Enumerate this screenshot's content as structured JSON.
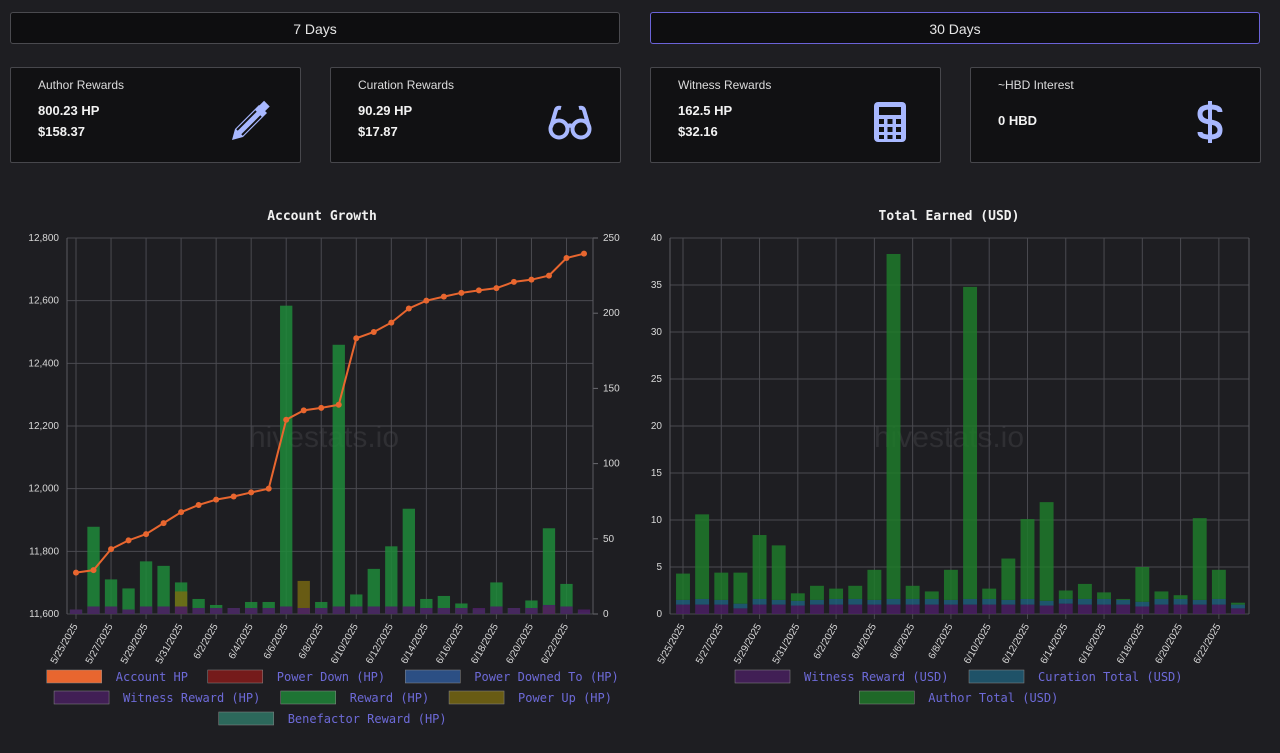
{
  "range_buttons": [
    {
      "label": "7 Days",
      "active": false
    },
    {
      "label": "30 Days",
      "active": true
    }
  ],
  "cards": [
    {
      "title": "Author Rewards",
      "value1": "800.23 HP",
      "value2": "$158.37",
      "icon": "pencil-icon"
    },
    {
      "title": "Curation Rewards",
      "value1": "90.29 HP",
      "value2": "$17.87",
      "icon": "glasses-icon"
    },
    {
      "title": "Witness Rewards",
      "value1": "162.5 HP",
      "value2": "$32.16",
      "icon": "calculator-icon"
    },
    {
      "title": "~HBD Interest",
      "value1": "0 HBD",
      "value2": "",
      "icon": "dollar-icon"
    }
  ],
  "colors": {
    "accent": "#6b63d8",
    "icon": "#a8b8ff",
    "account_hp": "#e8662f",
    "power_down": "#8b1a1a",
    "power_downed_to": "#2f5b9e",
    "witness": "#4a1f63",
    "reward": "#1e8a3a",
    "power_up": "#7a6a12",
    "benefactor": "#2f7a6a",
    "curation": "#1f5f7a",
    "author": "#1f7a2a"
  },
  "watermark": "hivestats.io",
  "chart_data": [
    {
      "type": "bar",
      "title": "Account Growth",
      "categories": [
        "5/25/2025",
        "5/26/2025",
        "5/27/2025",
        "5/28/2025",
        "5/29/2025",
        "5/30/2025",
        "5/31/2025",
        "6/1/2025",
        "6/2/2025",
        "6/3/2025",
        "6/4/2025",
        "6/5/2025",
        "6/6/2025",
        "6/7/2025",
        "6/8/2025",
        "6/9/2025",
        "6/10/2025",
        "6/11/2025",
        "6/12/2025",
        "6/13/2025",
        "6/14/2025",
        "6/15/2025",
        "6/16/2025",
        "6/17/2025",
        "6/18/2025",
        "6/19/2025",
        "6/20/2025",
        "6/21/2025",
        "6/22/2025",
        "6/23/2025"
      ],
      "tick_labels": [
        "5/25/2025",
        "5/27/2025",
        "5/29/2025",
        "5/31/2025",
        "6/2/2025",
        "6/4/2025",
        "6/6/2025",
        "6/8/2025",
        "6/10/2025",
        "6/12/2025",
        "6/14/2025",
        "6/16/2025",
        "6/18/2025",
        "6/20/2025",
        "6/22/2025"
      ],
      "y_left": {
        "min": 11600,
        "max": 12800,
        "ticks": [
          "11,600",
          "11,800",
          "12,000",
          "12,200",
          "12,400",
          "12,600",
          "12,800"
        ]
      },
      "y_right": {
        "min": 0,
        "max": 250,
        "ticks": [
          "0",
          "50",
          "100",
          "150",
          "200",
          "250"
        ]
      },
      "line_series": {
        "name": "Account HP",
        "axis": "left",
        "values": [
          11732,
          11740,
          11807,
          11835,
          11855,
          11890,
          11925,
          11948,
          11965,
          11975,
          11988,
          12000,
          12220,
          12250,
          12258,
          12268,
          12480,
          12500,
          12530,
          12575,
          12600,
          12613,
          12625,
          12633,
          12640,
          12660,
          12667,
          12680,
          12736,
          12750
        ]
      },
      "bar_series": [
        {
          "name": "Reward (HP)",
          "axis": "right",
          "values": [
            3,
            58,
            23,
            17,
            35,
            32,
            21,
            10,
            6,
            4,
            8,
            8,
            205,
            4,
            8,
            179,
            13,
            30,
            45,
            70,
            10,
            12,
            7,
            3,
            21,
            4,
            9,
            57,
            20,
            1
          ]
        },
        {
          "name": "Witness Reward (HP)",
          "axis": "right",
          "values": [
            3,
            5,
            5,
            3,
            5,
            5,
            5,
            4,
            4,
            4,
            4,
            4,
            5,
            4,
            4,
            5,
            5,
            5,
            5,
            5,
            4,
            4,
            4,
            4,
            5,
            4,
            4,
            6,
            5,
            3
          ]
        },
        {
          "name": "Power Up (HP)",
          "axis": "right",
          "values": [
            0,
            0,
            0,
            0,
            0,
            0,
            15,
            0,
            0,
            0,
            0,
            0,
            0,
            22,
            0,
            0,
            0,
            0,
            0,
            0,
            0,
            0,
            0,
            0,
            0,
            0,
            0,
            5,
            0,
            0
          ]
        },
        {
          "name": "Power Down (HP)",
          "axis": "right",
          "values": []
        },
        {
          "name": "Power Downed To (HP)",
          "axis": "right",
          "values": []
        },
        {
          "name": "Benefactor Reward (HP)",
          "axis": "right",
          "values": []
        }
      ],
      "legend": [
        "Account HP",
        "Power Down (HP)",
        "Power Downed To (HP)",
        "Witness Reward (HP)",
        "Reward (HP)",
        "Power Up (HP)",
        "Benefactor Reward (HP)"
      ]
    },
    {
      "type": "bar",
      "title": "Total Earned (USD)",
      "categories": [
        "5/25/2025",
        "5/26/2025",
        "5/27/2025",
        "5/28/2025",
        "5/29/2025",
        "5/30/2025",
        "5/31/2025",
        "6/1/2025",
        "6/2/2025",
        "6/3/2025",
        "6/4/2025",
        "6/5/2025",
        "6/6/2025",
        "6/7/2025",
        "6/8/2025",
        "6/9/2025",
        "6/10/2025",
        "6/11/2025",
        "6/12/2025",
        "6/13/2025",
        "6/14/2025",
        "6/15/2025",
        "6/16/2025",
        "6/17/2025",
        "6/18/2025",
        "6/19/2025",
        "6/20/2025",
        "6/21/2025",
        "6/22/2025",
        "6/23/2025"
      ],
      "tick_labels": [
        "5/25/2025",
        "5/27/2025",
        "5/29/2025",
        "5/31/2025",
        "6/2/2025",
        "6/4/2025",
        "6/6/2025",
        "6/8/2025",
        "6/10/2025",
        "6/12/2025",
        "6/14/2025",
        "6/16/2025",
        "6/18/2025",
        "6/20/2025",
        "6/22/2025"
      ],
      "ylim": [
        0,
        40
      ],
      "y_ticks": [
        "0",
        "5",
        "10",
        "15",
        "20",
        "25",
        "30",
        "35",
        "40"
      ],
      "series": [
        {
          "name": "Witness Reward (USD)",
          "values": [
            1.0,
            1.0,
            1.0,
            0.6,
            1.0,
            1.0,
            0.9,
            1.0,
            1.0,
            1.0,
            1.0,
            1.0,
            1.0,
            1.0,
            1.0,
            1.0,
            1.0,
            1.0,
            1.0,
            0.9,
            1.1,
            1.0,
            1.0,
            1.0,
            0.8,
            1.0,
            1.0,
            1.0,
            1.0,
            0.6
          ]
        },
        {
          "name": "Curation Total (USD)",
          "values": [
            0.5,
            0.6,
            0.5,
            0.5,
            0.6,
            0.5,
            0.5,
            0.5,
            0.6,
            0.6,
            0.5,
            0.6,
            0.6,
            0.6,
            0.5,
            0.6,
            0.6,
            0.5,
            0.6,
            0.5,
            0.5,
            0.6,
            0.6,
            0.5,
            0.5,
            0.6,
            0.6,
            0.5,
            0.6,
            0.4
          ]
        },
        {
          "name": "Author Total (USD)",
          "values": [
            2.8,
            9.0,
            2.9,
            3.3,
            6.8,
            5.8,
            0.8,
            1.5,
            1.1,
            1.4,
            3.2,
            36.7,
            1.4,
            0.8,
            3.2,
            33.2,
            1.1,
            4.4,
            8.5,
            10.5,
            0.9,
            1.6,
            0.7,
            0.1,
            3.7,
            0.8,
            0.4,
            8.7,
            3.1,
            0.2
          ]
        }
      ],
      "legend": [
        "Witness Reward (USD)",
        "Curation Total (USD)",
        "Author Total (USD)"
      ]
    }
  ]
}
